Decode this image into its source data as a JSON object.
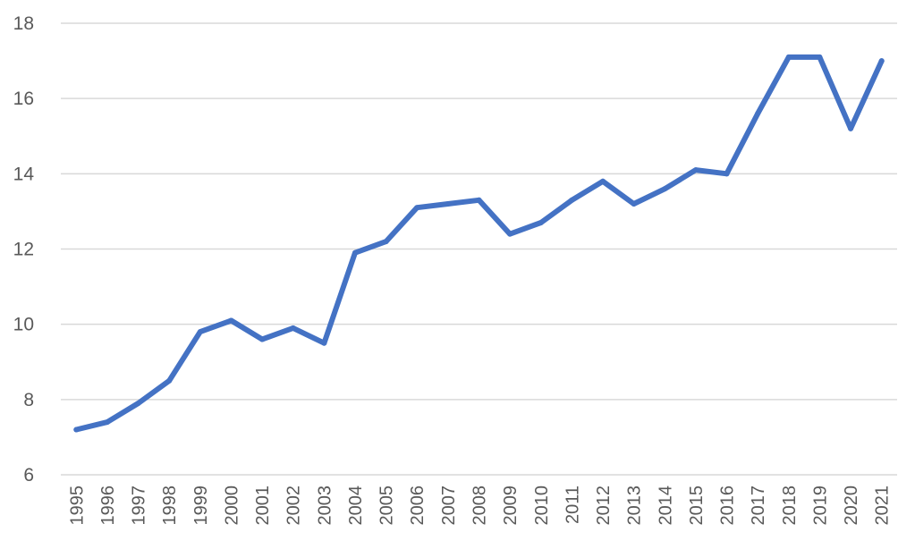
{
  "chart_data": {
    "type": "line",
    "title": "",
    "xlabel": "",
    "ylabel": "",
    "categories": [
      "1995",
      "1996",
      "1997",
      "1998",
      "1999",
      "2000",
      "2001",
      "2002",
      "2003",
      "2004",
      "2005",
      "2006",
      "2007",
      "2008",
      "2009",
      "2010",
      "2011",
      "2012",
      "2013",
      "2014",
      "2015",
      "2016",
      "2017",
      "2018",
      "2019",
      "2020",
      "2021"
    ],
    "series": [
      {
        "values": [
          7.2,
          7.4,
          7.9,
          8.5,
          9.8,
          10.1,
          9.6,
          9.9,
          9.5,
          11.9,
          12.2,
          13.1,
          13.2,
          13.3,
          12.4,
          12.7,
          13.3,
          13.8,
          13.2,
          13.6,
          14.1,
          14.0,
          15.6,
          17.1,
          17.1,
          15.2,
          17.0
        ],
        "color": "#4472c4"
      }
    ],
    "ylim": [
      6,
      18
    ],
    "yticks": [
      "6",
      "8",
      "10",
      "12",
      "14",
      "16",
      "18"
    ],
    "grid": true,
    "legend": "none"
  }
}
